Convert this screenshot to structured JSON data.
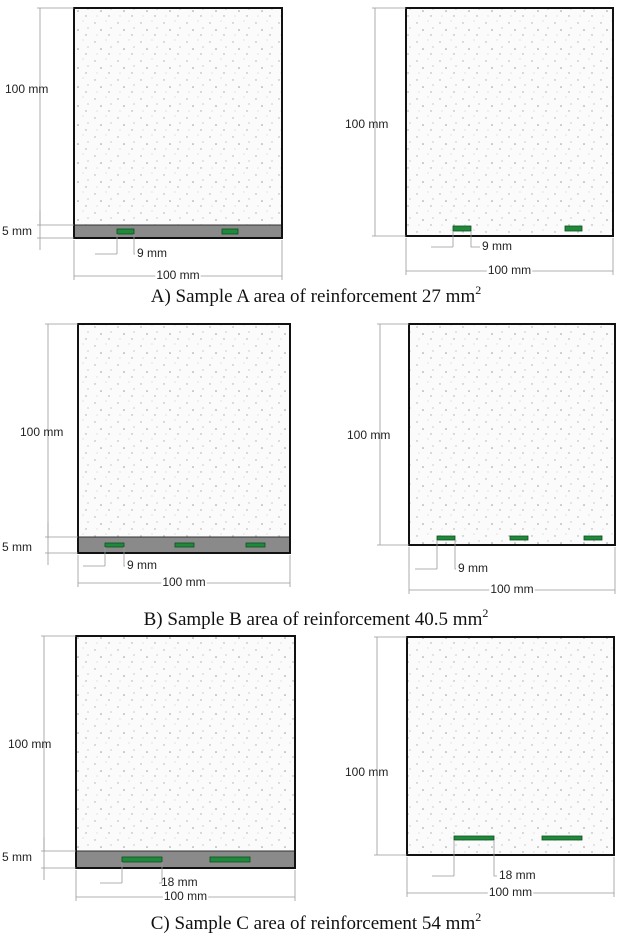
{
  "panels": [
    {
      "caption": {
        "text": "A) Sample A area of reinforcement 27 mm",
        "sup": "2"
      },
      "left": {
        "height_label": "100 mm",
        "cover_label": "5 mm",
        "spacing_label": "9 mm",
        "width_label": "100 mm"
      },
      "right": {
        "height_label": "100 mm",
        "spacing_label": "9 mm",
        "width_label": "100 mm"
      }
    },
    {
      "caption": {
        "text": "B) Sample B area of reinforcement 40.5 mm",
        "sup": "2"
      },
      "left": {
        "height_label": "100 mm",
        "cover_label": "5 mm",
        "spacing_label": "9 mm",
        "width_label": "100 mm"
      },
      "right": {
        "height_label": "100 mm",
        "spacing_label": "9 mm",
        "width_label": "100 mm"
      }
    },
    {
      "caption": {
        "text": "C) Sample C area of reinforcement 54 mm",
        "sup": "2"
      },
      "left": {
        "height_label": "100 mm",
        "cover_label": "5 mm",
        "spacing_label": "18 mm",
        "width_label": "100 mm"
      },
      "right": {
        "height_label": "100 mm",
        "spacing_label": "18 mm",
        "width_label": "100 mm"
      }
    }
  ]
}
